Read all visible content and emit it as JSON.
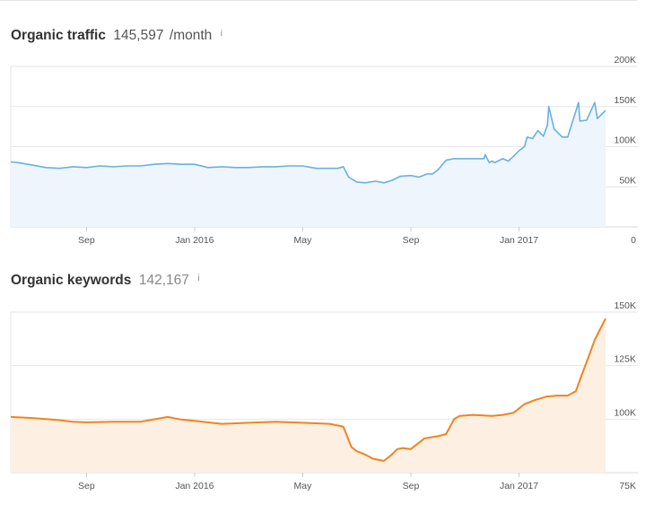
{
  "charts": {
    "traffic": {
      "title": "Organic traffic",
      "value": "145,597",
      "unit": "/month",
      "info": "i"
    },
    "keywords": {
      "title": "Organic keywords",
      "value": "142,167",
      "info": "i"
    }
  },
  "colors": {
    "traffic_line": "#6ab0e0",
    "traffic_fill": "#eef5fd",
    "keywords_line": "#f0841f",
    "keywords_fill": "#fdf0e3",
    "grid": "#e6e6e6"
  },
  "chart_data": [
    {
      "type": "area",
      "title": "Organic traffic",
      "x_unit": "month",
      "x_ticks": [
        {
          "x": 2,
          "label": "Sep"
        },
        {
          "x": 6,
          "label": "Jan 2016"
        },
        {
          "x": 10,
          "label": "May"
        },
        {
          "x": 14,
          "label": "Sep"
        },
        {
          "x": 18,
          "label": "Jan 2017"
        }
      ],
      "xlim": [
        -0.8,
        21.3
      ],
      "y_ticks": [
        {
          "value": 0,
          "label": "0"
        },
        {
          "value": 50000,
          "label": "50K"
        },
        {
          "value": 100000,
          "label": "100K"
        },
        {
          "value": 150000,
          "label": "150K"
        },
        {
          "value": 200000,
          "label": "200K"
        }
      ],
      "ylim": [
        0,
        200000
      ],
      "grid": true,
      "series": [
        {
          "x": [
            -0.8,
            -0.5,
            0,
            0.5,
            1,
            1.5,
            2,
            2.5,
            3,
            3.5,
            4,
            4.5,
            5,
            5.5,
            6,
            6.5,
            7,
            7.5,
            8,
            8.5,
            9,
            9.5,
            10,
            10.5,
            11,
            11.3,
            11.5,
            11.7,
            12,
            12.3,
            12.7,
            13,
            13.3,
            13.6,
            14,
            14.3,
            14.6,
            14.8,
            15,
            15.3,
            15.6,
            16,
            16.4,
            16.7,
            16.75,
            16.9,
            17,
            17.1,
            17.4,
            17.6,
            17.8,
            18,
            18.2,
            18.3,
            18.5,
            18.7,
            18.9,
            19.05,
            19.1,
            19.3,
            19.6,
            19.8,
            20.2,
            20.25,
            20.5,
            20.8,
            20.9,
            21.2
          ],
          "y": [
            81000,
            80000,
            77000,
            74000,
            73000,
            75000,
            74000,
            76000,
            75000,
            76000,
            76000,
            78000,
            79000,
            78000,
            78000,
            74000,
            75000,
            74000,
            74000,
            75000,
            75000,
            76000,
            76000,
            73000,
            73000,
            73000,
            75000,
            62000,
            56000,
            55000,
            57000,
            55000,
            58000,
            63000,
            64000,
            62000,
            66000,
            66000,
            71000,
            83000,
            85000,
            85000,
            85000,
            85000,
            90000,
            80000,
            82000,
            80000,
            85000,
            82000,
            88000,
            95000,
            100000,
            112000,
            110000,
            120000,
            113000,
            127000,
            150000,
            122000,
            112000,
            112000,
            155000,
            132000,
            133000,
            155000,
            135000,
            145000
          ]
        }
      ]
    },
    {
      "type": "area",
      "title": "Organic keywords",
      "x_unit": "month",
      "x_ticks": [
        {
          "x": 2,
          "label": "Sep"
        },
        {
          "x": 6,
          "label": "Jan 2016"
        },
        {
          "x": 10,
          "label": "May"
        },
        {
          "x": 14,
          "label": "Sep"
        },
        {
          "x": 18,
          "label": "Jan 2017"
        }
      ],
      "xlim": [
        -0.8,
        21.3
      ],
      "y_ticks": [
        {
          "value": 75000,
          "label": "75K"
        },
        {
          "value": 100000,
          "label": "100K"
        },
        {
          "value": 125000,
          "label": "125K"
        },
        {
          "value": 150000,
          "label": "150K"
        }
      ],
      "ylim": [
        75000,
        150000
      ],
      "grid": true,
      "series": [
        {
          "x": [
            -0.8,
            0,
            0.5,
            1,
            1.5,
            2,
            3,
            4,
            4.5,
            5,
            5.5,
            6,
            7,
            8,
            9,
            10,
            11,
            11.5,
            11.8,
            12,
            12.3,
            12.6,
            13,
            13.3,
            13.5,
            13.7,
            14,
            14.5,
            15,
            15.3,
            15.6,
            15.8,
            16.3,
            17,
            17.4,
            17.8,
            18.2,
            18.6,
            19,
            19.4,
            19.8,
            20.1,
            20.3,
            20.6,
            20.8,
            21.2
          ],
          "y": [
            101000,
            100500,
            100000,
            99500,
            98800,
            98500,
            98800,
            98800,
            99900,
            101000,
            99800,
            99200,
            97800,
            98300,
            98800,
            98300,
            97800,
            96500,
            87000,
            85000,
            83500,
            81500,
            80500,
            83500,
            86000,
            86500,
            86000,
            91000,
            92000,
            93000,
            100000,
            101500,
            102000,
            101500,
            102000,
            103000,
            107000,
            109000,
            110500,
            111000,
            111000,
            113000,
            120000,
            130000,
            137000,
            147000
          ]
        }
      ]
    }
  ]
}
